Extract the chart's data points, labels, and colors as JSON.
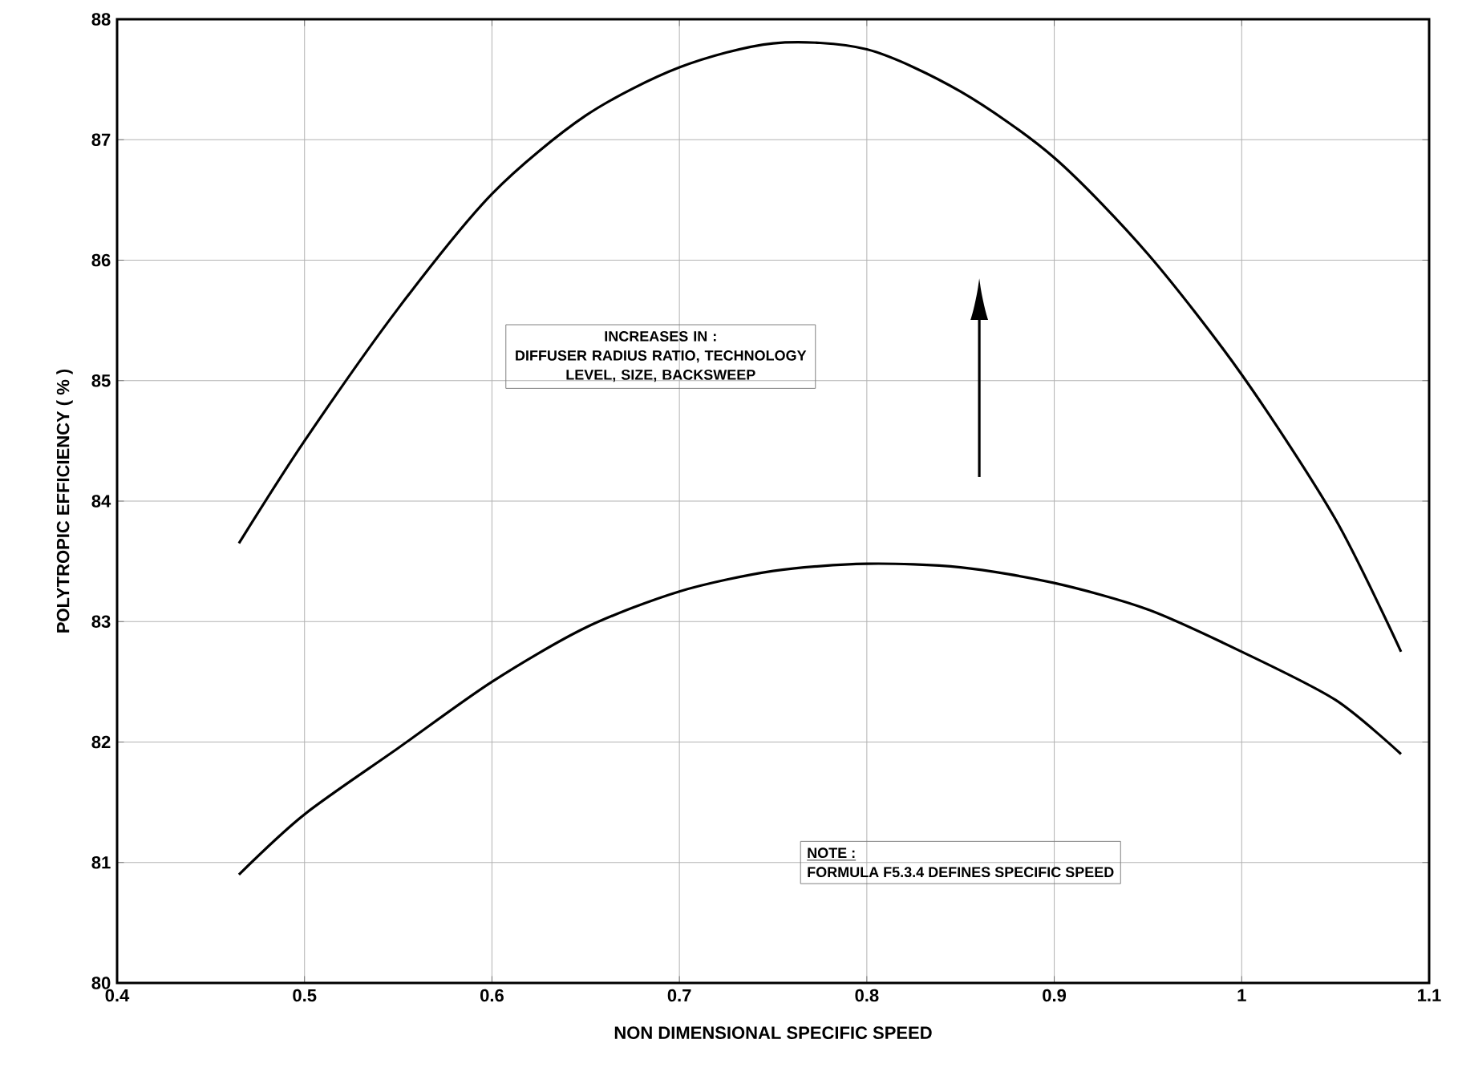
{
  "chart_data": {
    "type": "line",
    "xlabel": "NON DIMENSIONAL SPECIFIC SPEED",
    "ylabel": "POLYTROPIC EFFICIENCY ( % )",
    "xlim": [
      0.4,
      1.1
    ],
    "xticks": [
      0.4,
      0.5,
      0.6,
      0.7,
      0.8,
      0.9,
      1,
      1.1
    ],
    "ylim": [
      80,
      88
    ],
    "yticks": [
      80,
      81,
      82,
      83,
      84,
      85,
      86,
      87,
      88
    ],
    "grid": true,
    "marker": "none",
    "line_style": "solid",
    "series": [
      {
        "color": "#000000",
        "x": [
          0.465,
          0.5,
          0.55,
          0.6,
          0.65,
          0.7,
          0.75,
          0.8,
          0.85,
          0.9,
          0.95,
          1.0,
          1.05,
          1.085
        ],
        "values": [
          83.65,
          84.5,
          85.6,
          86.55,
          87.2,
          87.6,
          87.8,
          87.75,
          87.4,
          86.85,
          86.05,
          85.05,
          83.85,
          82.75
        ]
      },
      {
        "color": "#000000",
        "x": [
          0.465,
          0.5,
          0.55,
          0.6,
          0.65,
          0.7,
          0.75,
          0.8,
          0.85,
          0.9,
          0.95,
          1.0,
          1.05,
          1.085
        ],
        "values": [
          80.9,
          81.4,
          81.95,
          82.5,
          82.95,
          83.25,
          83.42,
          83.48,
          83.45,
          83.32,
          83.1,
          82.75,
          82.35,
          81.9
        ]
      }
    ],
    "annotations": [
      "INCREASES IN :",
      "DIFFUSER RADIUS RATIO, TECHNOLOGY LEVEL, SIZE, BACKSWEEP",
      "NOTE :",
      "FORMULA F5.3.4 DEFINES SPECIFIC SPEED"
    ]
  }
}
